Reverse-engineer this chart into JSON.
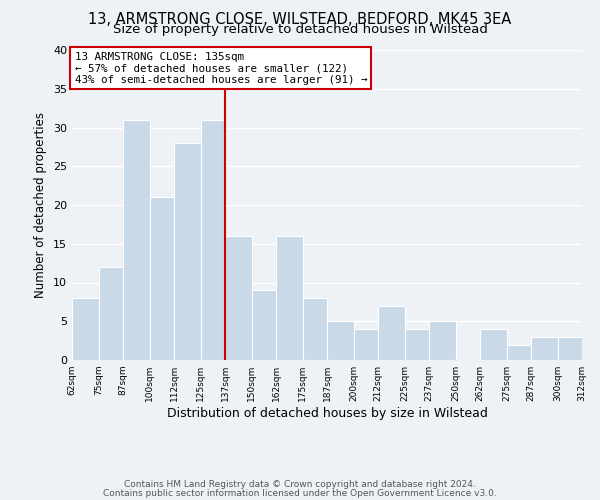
{
  "title1": "13, ARMSTRONG CLOSE, WILSTEAD, BEDFORD, MK45 3EA",
  "title2": "Size of property relative to detached houses in Wilstead",
  "xlabel": "Distribution of detached houses by size in Wilstead",
  "ylabel": "Number of detached properties",
  "bin_edges": [
    62,
    75,
    87,
    100,
    112,
    125,
    137,
    150,
    162,
    175,
    187,
    200,
    212,
    225,
    237,
    250,
    262,
    275,
    287,
    300,
    312
  ],
  "bar_heights": [
    8,
    12,
    31,
    21,
    28,
    31,
    16,
    9,
    16,
    8,
    5,
    4,
    7,
    4,
    5,
    0,
    4,
    2,
    3,
    3
  ],
  "bar_color": "#c9d9e8",
  "bar_edge_color": "#ffffff",
  "reference_line_x": 137,
  "reference_line_color": "#cc0000",
  "ylim": [
    0,
    40
  ],
  "yticks": [
    0,
    5,
    10,
    15,
    20,
    25,
    30,
    35,
    40
  ],
  "annotation_title": "13 ARMSTRONG CLOSE: 135sqm",
  "annotation_line1": "← 57% of detached houses are smaller (122)",
  "annotation_line2": "43% of semi-detached houses are larger (91) →",
  "annotation_box_color": "#ffffff",
  "annotation_box_edge_color": "#cc0000",
  "footer1": "Contains HM Land Registry data © Crown copyright and database right 2024.",
  "footer2": "Contains public sector information licensed under the Open Government Licence v3.0.",
  "background_color": "#eef2f7",
  "grid_color": "#ffffff",
  "title1_fontsize": 10.5,
  "title2_fontsize": 9.5,
  "xlabel_fontsize": 9,
  "ylabel_fontsize": 8.5,
  "footer_fontsize": 6.5
}
